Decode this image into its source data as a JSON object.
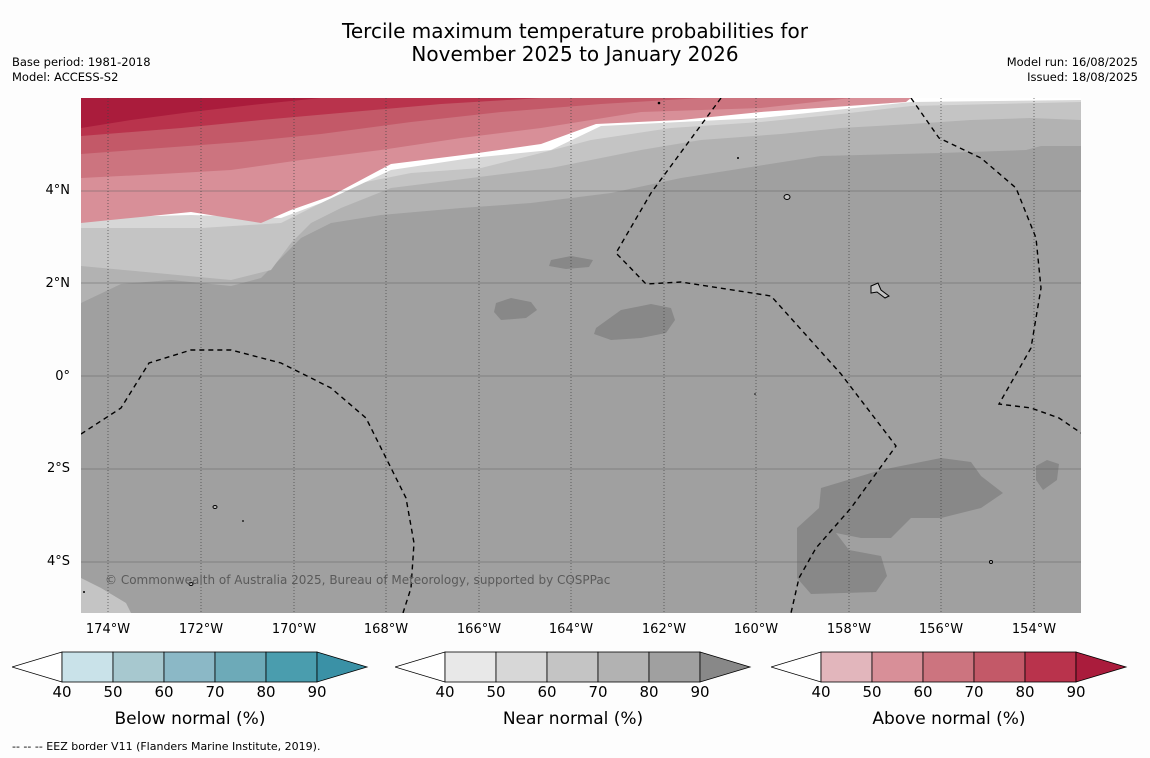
{
  "title_line1": "Tercile maximum temperature probabilities for",
  "title_line2": "November 2025 to January 2026",
  "meta_left": {
    "base_period": "Base period: 1981-2018",
    "model": "Model: ACCESS-S2"
  },
  "meta_right": {
    "model_run": "Model run: 16/08/2025",
    "issued": "Issued: 18/08/2025"
  },
  "copyright": "© Commonwealth of Australia 2025, Bureau of Meteorology, supported by COSPPac",
  "lat_labels": [
    "4°N",
    "2°N",
    "0°",
    "2°S",
    "4°S"
  ],
  "lon_labels": [
    "174°W",
    "172°W",
    "170°W",
    "168°W",
    "166°W",
    "164°W",
    "162°W",
    "160°W",
    "158°W",
    "156°W",
    "154°W"
  ],
  "colorbars": [
    {
      "label": "Below normal (%)",
      "ticks": [
        "40",
        "50",
        "60",
        "70",
        "80",
        "90"
      ],
      "colors": [
        "#ffffff",
        "#c9e2e9",
        "#a7c8cf",
        "#8bb8c6",
        "#6daab8",
        "#4a9dae",
        "#3a91a6"
      ]
    },
    {
      "label": "Near normal (%)",
      "ticks": [
        "40",
        "50",
        "60",
        "70",
        "80",
        "90"
      ],
      "colors": [
        "#ffffff",
        "#e8e8e8",
        "#d7d7d7",
        "#c4c4c4",
        "#b2b2b2",
        "#a0a0a0",
        "#888888"
      ]
    },
    {
      "label": "Above normal (%)",
      "ticks": [
        "40",
        "50",
        "60",
        "70",
        "80",
        "90"
      ],
      "colors": [
        "#ffffff",
        "#e2b6bc",
        "#d88f98",
        "#cc747f",
        "#c35968",
        "#b9334c",
        "#aa1c3c"
      ]
    }
  ],
  "footnote": "--  --  -- EEZ border V11 (Flanders Marine Institute, 2019)."
}
